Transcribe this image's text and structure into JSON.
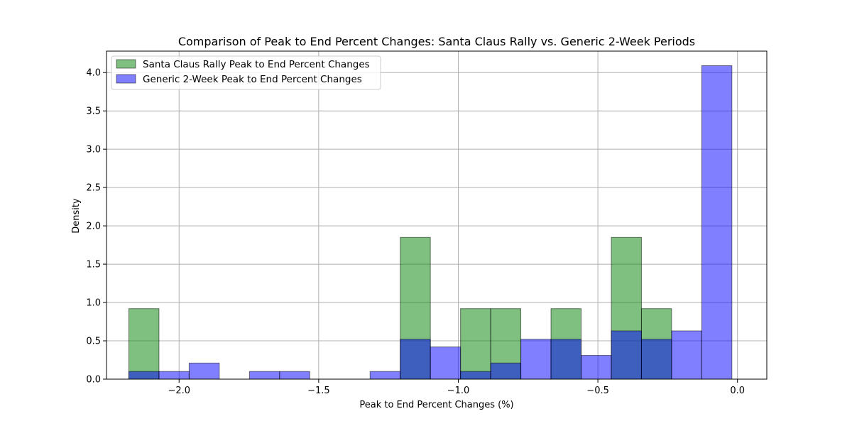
{
  "chart_data": {
    "type": "histogram",
    "title": "Comparison of Peak to End Percent Changes: Santa Claus Rally vs. Generic 2-Week Periods",
    "xlabel": "Peak to End Percent Changes (%)",
    "ylabel": "Density",
    "xlim": [
      -2.26,
      0.105
    ],
    "ylim": [
      0,
      4.28
    ],
    "xticks": [
      -2.0,
      -1.5,
      -1.0,
      -0.5,
      0.0
    ],
    "xtick_labels": [
      "−2.0",
      "−1.5",
      "−1.0",
      "−0.5",
      "0.0"
    ],
    "yticks": [
      0.0,
      0.5,
      1.0,
      1.5,
      2.0,
      2.5,
      3.0,
      3.5,
      4.0
    ],
    "ytick_labels": [
      "0.0",
      "0.5",
      "1.0",
      "1.5",
      "2.0",
      "2.5",
      "3.0",
      "3.5",
      "4.0"
    ],
    "grid": true,
    "legend_position": "top-left",
    "bin_edges": [
      -2.18,
      -2.072,
      -1.964,
      -1.856,
      -1.748,
      -1.64,
      -1.532,
      -1.424,
      -1.316,
      -1.208,
      -1.1,
      -0.992,
      -0.884,
      -0.776,
      -0.668,
      -0.56,
      -0.452,
      -0.344,
      -0.236,
      -0.128,
      -0.02
    ],
    "series": [
      {
        "name": "Santa Claus Rally Peak to End Percent Changes",
        "color": "#008000",
        "alpha": 0.5,
        "values": [
          0.92,
          0,
          0,
          0,
          0,
          0,
          0,
          0,
          0,
          1.85,
          0,
          0.92,
          0.92,
          0,
          0.92,
          0,
          1.85,
          0.92,
          0,
          0
        ]
      },
      {
        "name": "Generic 2-Week Peak to End Percent Changes",
        "color": "#0000ff",
        "alpha": 0.5,
        "values": [
          0.1,
          0.1,
          0.21,
          0,
          0.1,
          0.1,
          0,
          0,
          0.1,
          0.52,
          0.42,
          0.1,
          0.21,
          0.52,
          0.52,
          0.31,
          0.63,
          0.52,
          0.63,
          4.09
        ]
      }
    ]
  }
}
